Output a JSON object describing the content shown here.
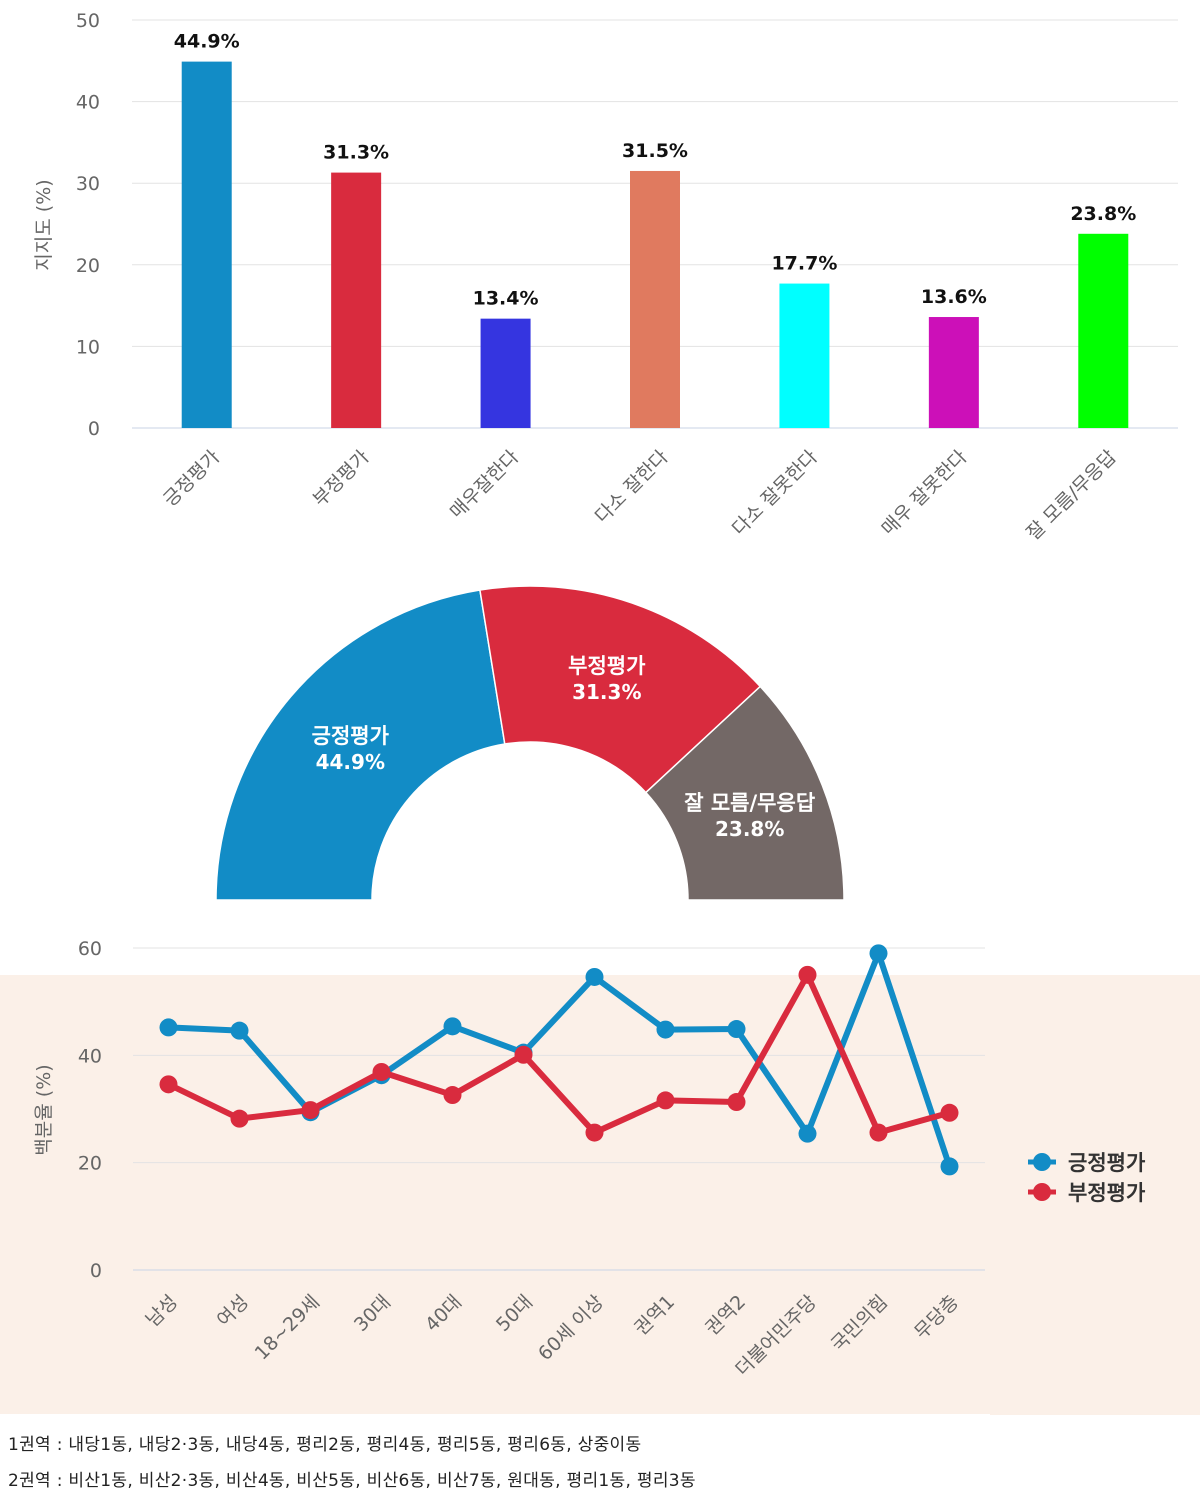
{
  "chart_data": [
    {
      "type": "bar",
      "title": "",
      "ylabel": "지지도 (%)",
      "xlabel": "",
      "ylim": [
        0,
        50
      ],
      "yticks": [
        0,
        10,
        20,
        30,
        40,
        50
      ],
      "grid": true,
      "categories": [
        "긍정평가",
        "부정평가",
        "매우잘한다",
        "다소 잘한다",
        "다소 잘못한다",
        "매우 잘못한다",
        "잘 모름/무응답"
      ],
      "values": [
        44.9,
        31.3,
        13.4,
        31.5,
        17.7,
        13.6,
        23.8
      ],
      "labels": [
        "44.9%",
        "31.3%",
        "13.4%",
        "31.5%",
        "17.7%",
        "13.6%",
        "23.8%"
      ],
      "colors": [
        "#128cc6",
        "#d92b3e",
        "#3535e0",
        "#e07a5f",
        "#00ffff",
        "#cc10b8",
        "#00ff00"
      ]
    },
    {
      "type": "pie",
      "variant": "semi-donut",
      "slices": [
        {
          "name": "긍정평가",
          "value": 44.9,
          "label": "44.9%",
          "color": "#128cc6"
        },
        {
          "name": "부정평가",
          "value": 31.3,
          "label": "31.3%",
          "color": "#d92b3e"
        },
        {
          "name": "잘 모름/무응답",
          "value": 23.8,
          "label": "23.8%",
          "color": "#736866"
        }
      ]
    },
    {
      "type": "line",
      "ylabel": "백분율 (%)",
      "xlabel": "",
      "ylim": [
        0,
        60
      ],
      "yticks": [
        0,
        20,
        40,
        60
      ],
      "grid": true,
      "legend_position": "right",
      "categories": [
        "남성",
        "여성",
        "18~29세",
        "30대",
        "40대",
        "50대",
        "60세 이상",
        "권역1",
        "권역2",
        "더불어민주당",
        "국민의힘",
        "무당층"
      ],
      "series": [
        {
          "name": "긍정평가",
          "color": "#128cc6",
          "values": [
            45.2,
            44.6,
            29.4,
            36.3,
            45.4,
            40.5,
            54.6,
            44.8,
            44.9,
            25.4,
            59.0,
            19.3
          ]
        },
        {
          "name": "부정평가",
          "color": "#d92b3e",
          "values": [
            34.6,
            28.2,
            29.8,
            36.9,
            32.6,
            40.1,
            25.6,
            31.6,
            31.3,
            55.0,
            25.6,
            29.3
          ]
        }
      ]
    }
  ],
  "footnote": {
    "line1": "1권역 : 내당1동, 내당2·3동, 내당4동, 평리2동, 평리4동, 평리5동, 평리6동, 상중이동",
    "line2": "2권역 : 비산1동, 비산2·3동, 비산4동, 비산5동, 비산6동, 비산7동, 원대동, 평리1동, 평리3동"
  }
}
